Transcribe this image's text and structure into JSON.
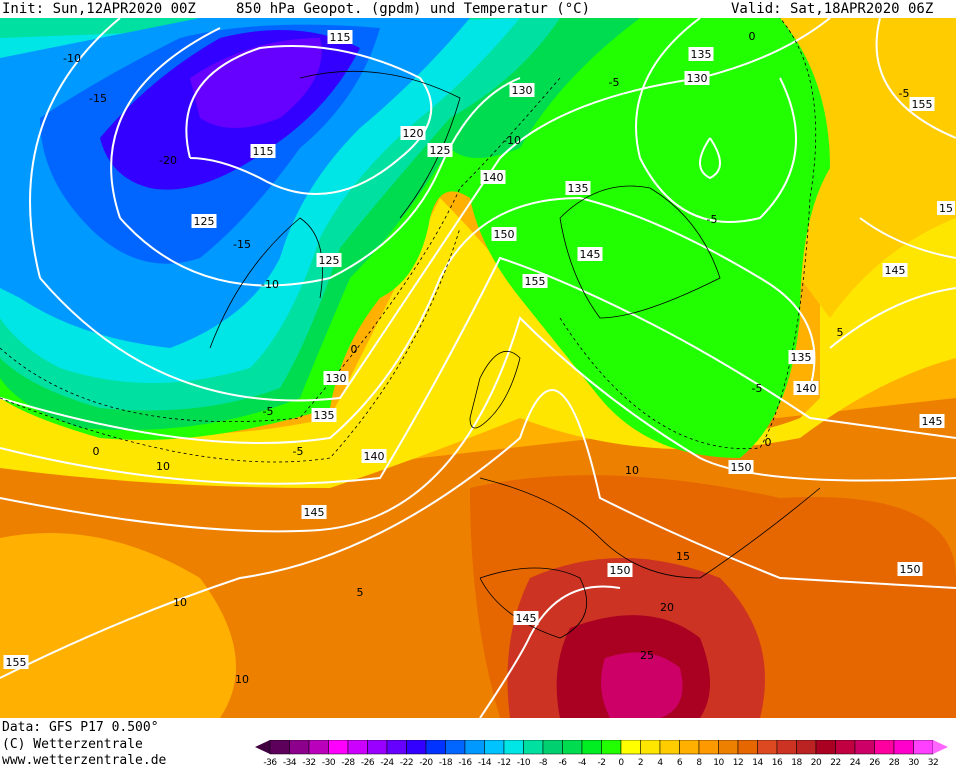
{
  "header": {
    "init": "Init: Sun,12APR2020 00Z",
    "title": "850 hPa Geopot. (gpdm) und Temperatur (°C)",
    "valid": "Valid: Sat,18APR2020 06Z"
  },
  "footer": {
    "data": "Data: GFS P17 0.500°",
    "copyright": "(C) Wetterzentrale",
    "url": "www.wetterzentrale.de"
  },
  "legend": {
    "ticks": [
      "-36",
      "-34",
      "-32",
      "-30",
      "-28",
      "-26",
      "-24",
      "-22",
      "-20",
      "-18",
      "-16",
      "-14",
      "-12",
      "-10",
      "-8",
      "-6",
      "-4",
      "-2",
      "0",
      "2",
      "4",
      "6",
      "8",
      "10",
      "12",
      "14",
      "16",
      "18",
      "20",
      "22",
      "24",
      "26",
      "28",
      "30",
      "32"
    ],
    "colors": [
      "#5c005c",
      "#8c008c",
      "#bb00bb",
      "#ff00ff",
      "#cc00ff",
      "#9900ff",
      "#6600ff",
      "#3300ff",
      "#0033ff",
      "#0066ff",
      "#0099ff",
      "#00c3ff",
      "#00e5e5",
      "#00e0a0",
      "#00d070",
      "#00dc50",
      "#00ee22",
      "#22ff00",
      "#ffff00",
      "#ffe600",
      "#ffcc00",
      "#ffb000",
      "#ff9900",
      "#ee8000",
      "#e66600",
      "#dd4a22",
      "#cc3322",
      "#bb2222",
      "#aa0022",
      "#c00040",
      "#cc0066",
      "#ff00a0",
      "#ff00cc",
      "#ff40ff"
    ],
    "under_color": "#400040",
    "over_color": "#ff66ff"
  },
  "geopotential_labels": [
    "115",
    "115",
    "125",
    "125",
    "120",
    "125",
    "130",
    "135",
    "130",
    "155",
    "140",
    "135",
    "150",
    "145",
    "155",
    "145",
    "130",
    "135",
    "140",
    "135",
    "140",
    "145",
    "150",
    "145",
    "150",
    "150",
    "145",
    "155",
    "15"
  ],
  "temperature_labels": [
    "-10",
    "-15",
    "-20",
    "-15",
    "-10",
    "0",
    "-5",
    "0",
    "10",
    "-10",
    "-5",
    "-5",
    "-5",
    "0",
    "5",
    "-5",
    "10",
    "0",
    "15",
    "20",
    "25",
    "10",
    "10",
    "5",
    "-5"
  ]
}
